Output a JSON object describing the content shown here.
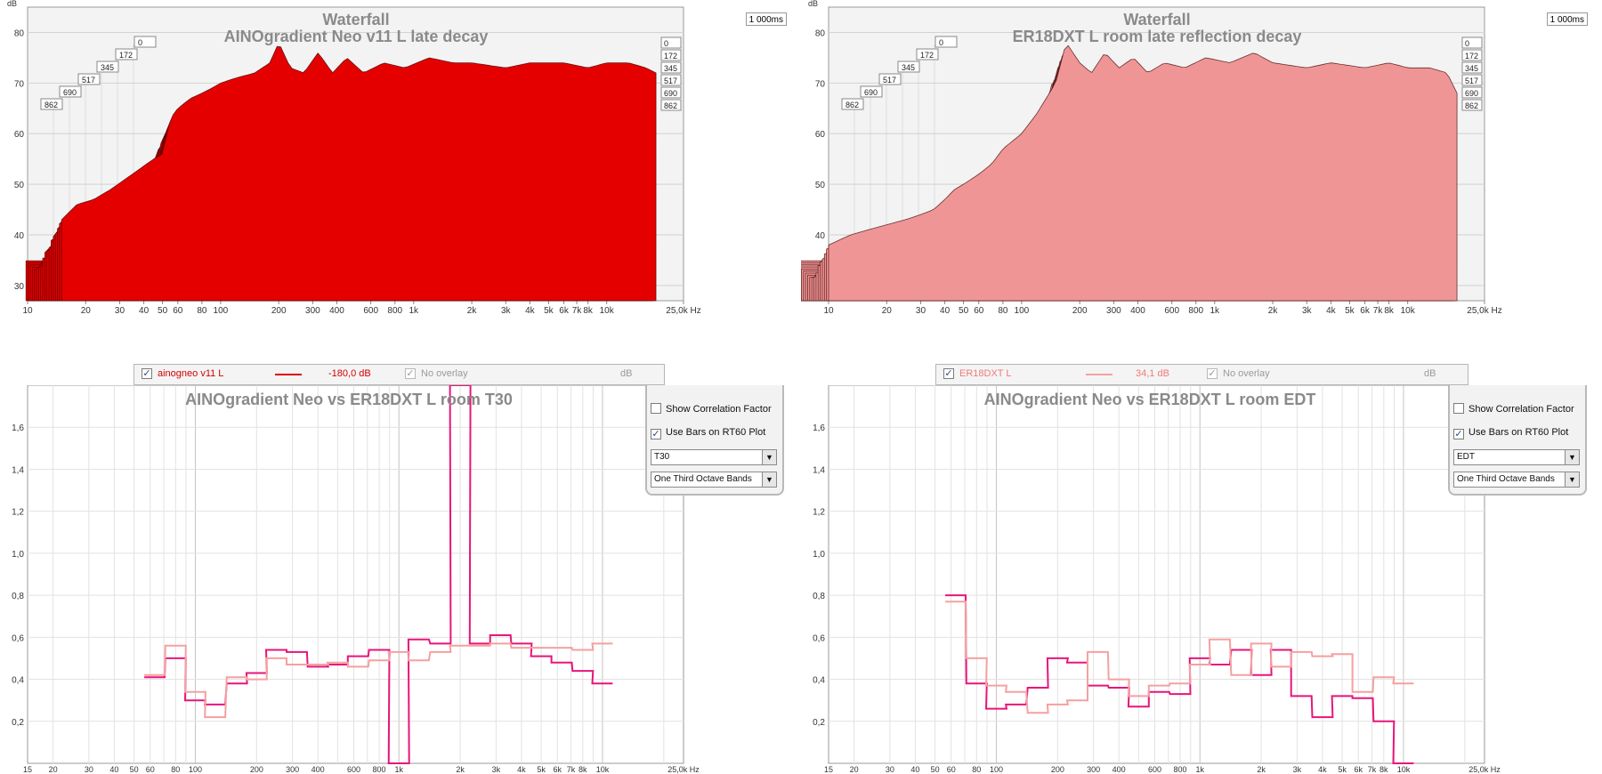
{
  "colors": {
    "neo_fill": "#e50000",
    "er_fill": "#f09595",
    "neo_rt": "#e8157a",
    "er_rt": "#f5a0a0",
    "legend_neo_text": "#d40000",
    "legend_er_text": "#f07a7a"
  },
  "waterfall_left": {
    "title": "Waterfall",
    "subtitle": "AINOgradient Neo v11 L late decay",
    "unit_label": "dB",
    "time_box": "1 000ms",
    "time_labels": [
      "0",
      "172",
      "345",
      "517",
      "690",
      "862"
    ],
    "legend": {
      "name": "ainogneo v11 L",
      "level": "-180,0 dB",
      "overlay": "No overlay",
      "unit": "dB"
    }
  },
  "waterfall_right": {
    "title": "Waterfall",
    "subtitle": "ER18DXT L room late reflection decay",
    "unit_label": "dB",
    "time_box": "1 000ms",
    "time_labels": [
      "0",
      "172",
      "345",
      "517",
      "690",
      "862"
    ],
    "legend": {
      "name": "ER18DXT L",
      "level": "34,1 dB",
      "overlay": "No overlay",
      "unit": "dB"
    }
  },
  "controls_left": {
    "show_correlation": "Show Correlation Factor",
    "use_bars": "Use Bars on RT60 Plot",
    "metric": "T30",
    "bands": "One Third Octave Bands"
  },
  "controls_right": {
    "show_correlation": "Show Correlation Factor",
    "use_bars": "Use Bars on RT60 Plot",
    "metric": "EDT",
    "bands": "One Third Octave Bands"
  },
  "chart_data": [
    {
      "type": "area",
      "title": "Waterfall",
      "subtitle": "AINOgradient Neo v11 L late decay",
      "ylabel": "dB",
      "xscale": "log",
      "xlim": [
        10,
        25000
      ],
      "ylim": [
        27,
        85
      ],
      "x_ticks": [
        "10",
        "20",
        "30",
        "40",
        "50",
        "60",
        "80",
        "100",
        "200",
        "300",
        "400",
        "600",
        "800",
        "1k",
        "2k",
        "3k",
        "4k",
        "5k",
        "6k",
        "7k",
        "8k",
        "10k",
        "25,0k Hz"
      ],
      "y_ticks": [
        "30",
        "40",
        "50",
        "60",
        "70",
        "80"
      ],
      "slice_times_ms": [
        "0",
        "172",
        "345",
        "517",
        "690",
        "862"
      ],
      "front_curve": {
        "x": [
          15,
          18,
          22,
          27,
          32,
          38,
          45,
          50,
          55,
          60,
          70,
          80,
          90,
          100,
          120,
          150,
          180,
          200,
          230,
          270,
          320,
          380,
          450,
          550,
          700,
          900,
          1200,
          1600,
          2000,
          3000,
          4000,
          6000,
          8000,
          10000,
          13000,
          16000,
          18000
        ],
        "y": [
          43,
          46,
          47,
          49,
          51,
          53,
          55,
          56,
          63,
          65,
          67,
          68,
          69,
          70,
          71,
          72,
          74,
          78,
          73,
          72,
          76,
          72,
          75,
          72,
          74,
          73,
          75,
          74,
          74,
          73,
          74,
          74,
          73,
          74,
          74,
          73,
          72
        ]
      }
    },
    {
      "type": "area",
      "title": "Waterfall",
      "subtitle": "ER18DXT L room late reflection decay",
      "ylabel": "dB",
      "xscale": "log",
      "xlim": [
        10,
        25000
      ],
      "ylim": [
        27,
        85
      ],
      "x_ticks": [
        "10",
        "20",
        "30",
        "40",
        "50",
        "60",
        "80",
        "100",
        "200",
        "300",
        "400",
        "600",
        "800",
        "1k",
        "2k",
        "3k",
        "4k",
        "5k",
        "6k",
        "7k",
        "8k",
        "10k",
        "25,0k Hz"
      ],
      "y_ticks": [
        "30",
        "40",
        "50",
        "60",
        "70",
        "80"
      ],
      "slice_times_ms": [
        "0",
        "172",
        "345",
        "517",
        "690",
        "862"
      ],
      "front_curve": {
        "x": [
          10,
          13,
          16,
          20,
          25,
          30,
          35,
          40,
          45,
          50,
          60,
          70,
          80,
          100,
          120,
          150,
          170,
          200,
          230,
          270,
          320,
          380,
          450,
          550,
          700,
          900,
          1200,
          1600,
          2000,
          3000,
          4000,
          6000,
          8000,
          10000,
          13000,
          16000,
          18000
        ],
        "y": [
          38,
          40,
          41,
          42,
          43,
          44,
          45,
          47,
          49,
          50,
          52,
          54,
          57,
          60,
          64,
          70,
          78,
          74,
          72,
          76,
          73,
          75,
          72,
          74,
          73,
          75,
          74,
          76,
          74,
          73,
          74,
          73,
          74,
          73,
          73,
          72,
          68
        ]
      }
    },
    {
      "type": "line",
      "title": "AINOgradient Neo vs ER18DXT L room T30",
      "xscale": "log",
      "xlim": [
        15,
        25000
      ],
      "ylim": [
        0,
        1.8
      ],
      "x_ticks": [
        "15",
        "20",
        "30",
        "40",
        "50",
        "60",
        "80",
        "100",
        "200",
        "300",
        "400",
        "600",
        "800",
        "1k",
        "2k",
        "3k",
        "4k",
        "5k",
        "6k",
        "7k",
        "8k",
        "10k",
        "25,0k Hz"
      ],
      "y_ticks": [
        "0,2",
        "0,4",
        "0,6",
        "0,8",
        "1,0",
        "1,2",
        "1,4",
        "1,6"
      ],
      "band_centers_hz": [
        63,
        80,
        100,
        125,
        160,
        200,
        250,
        315,
        400,
        500,
        630,
        800,
        1000,
        1250,
        1600,
        2000,
        2500,
        3150,
        4000,
        5000,
        6300,
        8000,
        10000
      ],
      "series": [
        {
          "values": [
            0.41,
            0.5,
            0.3,
            0.28,
            0.38,
            0.43,
            0.54,
            0.53,
            0.46,
            0.47,
            0.51,
            0.54,
            0.0,
            0.59,
            0.57,
            1.8,
            0.57,
            0.61,
            0.57,
            0.51,
            0.48,
            0.44,
            0.38
          ]
        },
        {
          "values": [
            0.42,
            0.56,
            0.34,
            0.22,
            0.41,
            0.4,
            0.5,
            0.47,
            0.47,
            0.48,
            0.46,
            0.49,
            0.53,
            0.49,
            0.53,
            0.56,
            0.56,
            0.57,
            0.55,
            0.55,
            0.55,
            0.54,
            0.57
          ]
        }
      ]
    },
    {
      "type": "line",
      "title": "AINOgradient Neo vs ER18DXT L room EDT",
      "xscale": "log",
      "xlim": [
        15,
        25000
      ],
      "ylim": [
        0,
        1.8
      ],
      "x_ticks": [
        "15",
        "20",
        "30",
        "40",
        "50",
        "60",
        "80",
        "100",
        "200",
        "300",
        "400",
        "600",
        "800",
        "1k",
        "2k",
        "3k",
        "4k",
        "5k",
        "6k",
        "7k",
        "8k",
        "10k",
        "25,0k Hz"
      ],
      "y_ticks": [
        "0,2",
        "0,4",
        "0,6",
        "0,8",
        "1,0",
        "1,2",
        "1,4",
        "1,6"
      ],
      "band_centers_hz": [
        63,
        80,
        100,
        125,
        160,
        200,
        250,
        315,
        400,
        500,
        630,
        800,
        1000,
        1250,
        1600,
        2000,
        2500,
        3150,
        4000,
        5000,
        6300,
        8000,
        10000
      ],
      "series": [
        {
          "values": [
            0.8,
            0.38,
            0.26,
            0.28,
            0.36,
            0.5,
            0.48,
            0.37,
            0.36,
            0.27,
            0.34,
            0.33,
            0.5,
            0.47,
            0.54,
            0.42,
            0.54,
            0.32,
            0.22,
            0.32,
            0.31,
            0.2,
            0.0
          ]
        },
        {
          "values": [
            0.77,
            0.5,
            0.37,
            0.34,
            0.24,
            0.28,
            0.3,
            0.53,
            0.4,
            0.32,
            0.37,
            0.38,
            0.47,
            0.59,
            0.42,
            0.57,
            0.46,
            0.53,
            0.51,
            0.52,
            0.34,
            0.41,
            0.38
          ]
        }
      ]
    }
  ]
}
